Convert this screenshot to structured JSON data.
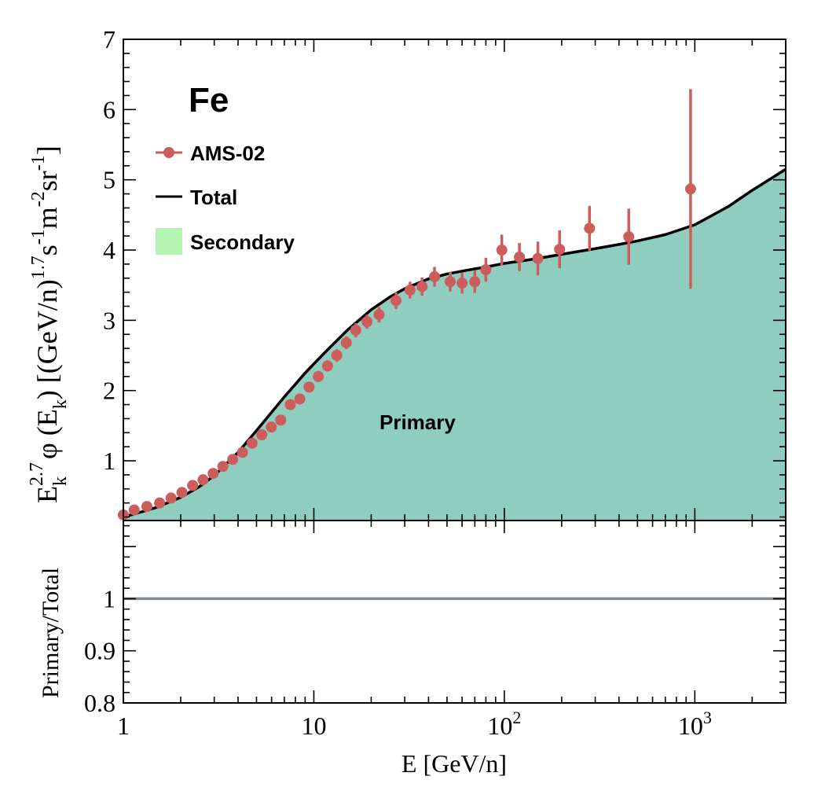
{
  "chart_data": [
    {
      "panel": "top",
      "type": "line",
      "title": "Fe",
      "xlabel": "E [GeV/n]",
      "ylabel": {
        "main": "E",
        "sub_k": "k",
        "sup_27": "2.7",
        "phi": "φ (E",
        "close_paren": ") [(GeV/n)",
        "sup_17": "1.7",
        "s": "s",
        "sup_m1": "-1",
        "m": "m",
        "sup_m2": "-2",
        "sr": "sr",
        "end": "]"
      },
      "xscale": "log",
      "xlim": [
        1,
        3000
      ],
      "ylim": [
        0.15,
        7
      ],
      "yticks": [
        "1",
        "2",
        "3",
        "4",
        "5",
        "6",
        "7"
      ],
      "xticks": [
        {
          "base": "1",
          "exp": ""
        },
        {
          "base": "10",
          "exp": ""
        },
        {
          "base": "10",
          "exp": "2"
        },
        {
          "base": "10",
          "exp": "3"
        }
      ],
      "legend": {
        "position": "top-left",
        "entries": [
          {
            "label": "AMS-02",
            "kind": "marker",
            "color": "#cd5c5c"
          },
          {
            "label": "Total",
            "kind": "line",
            "color": "#000000"
          },
          {
            "label": "Secondary",
            "kind": "patch",
            "color": "#b4f5b4"
          }
        ]
      },
      "annotation": "Primary",
      "fill_color": "#8fcdbf",
      "marker_color": "#cd5c5c",
      "series": [
        {
          "name": "Total",
          "x": [
            1,
            1.2,
            1.5,
            2,
            2.5,
            3,
            4,
            5,
            6,
            7,
            8,
            9,
            10,
            12,
            15,
            20,
            25,
            30,
            40,
            50,
            60,
            80,
            100,
            150,
            200,
            300,
            400,
            500,
            700,
            1000,
            1500,
            2000,
            3000
          ],
          "y": [
            0.2,
            0.26,
            0.34,
            0.48,
            0.63,
            0.79,
            1.12,
            1.43,
            1.69,
            1.91,
            2.09,
            2.25,
            2.38,
            2.6,
            2.86,
            3.15,
            3.33,
            3.45,
            3.59,
            3.66,
            3.7,
            3.76,
            3.81,
            3.88,
            3.94,
            4.02,
            4.08,
            4.13,
            4.22,
            4.36,
            4.62,
            4.85,
            5.15
          ]
        },
        {
          "name": "AMS-02",
          "x": [
            1.0,
            1.14,
            1.33,
            1.55,
            1.78,
            2.03,
            2.31,
            2.62,
            2.96,
            3.33,
            3.75,
            4.22,
            4.74,
            5.33,
            5.98,
            6.7,
            7.52,
            8.44,
            9.44,
            10.56,
            11.8,
            13.2,
            14.8,
            16.6,
            19.0,
            22.0,
            27.0,
            32.0,
            37.0,
            43.0,
            52.0,
            60.0,
            70.0,
            80.0,
            97.0,
            120.0,
            150.0,
            195.0,
            280.0,
            450.0,
            950.0
          ],
          "y": [
            0.23,
            0.3,
            0.35,
            0.4,
            0.47,
            0.55,
            0.65,
            0.73,
            0.82,
            0.92,
            1.02,
            1.12,
            1.25,
            1.37,
            1.48,
            1.58,
            1.8,
            1.88,
            2.05,
            2.2,
            2.35,
            2.5,
            2.68,
            2.86,
            2.98,
            3.08,
            3.28,
            3.43,
            3.48,
            3.62,
            3.55,
            3.53,
            3.55,
            3.72,
            4.0,
            3.9,
            3.88,
            4.01,
            4.31,
            4.19,
            4.87
          ],
          "yerr": [
            0.02,
            0.02,
            0.02,
            0.02,
            0.03,
            0.03,
            0.03,
            0.03,
            0.04,
            0.04,
            0.04,
            0.05,
            0.05,
            0.05,
            0.06,
            0.06,
            0.06,
            0.07,
            0.07,
            0.08,
            0.08,
            0.09,
            0.09,
            0.1,
            0.1,
            0.11,
            0.12,
            0.12,
            0.13,
            0.14,
            0.14,
            0.15,
            0.16,
            0.17,
            0.22,
            0.2,
            0.24,
            0.27,
            0.32,
            0.4,
            1.42
          ]
        }
      ]
    },
    {
      "panel": "bottom",
      "type": "line",
      "ylabel": "Primary/Total",
      "xscale": "log",
      "xlim": [
        1,
        3000
      ],
      "ylim": [
        0.8,
        1.15
      ],
      "yticks": [
        "0.8",
        "0.9",
        "1"
      ],
      "series": [
        {
          "name": "Primary/Total",
          "x": [
            1,
            3000
          ],
          "y": [
            1,
            1
          ],
          "color": "#808a90"
        }
      ]
    }
  ]
}
